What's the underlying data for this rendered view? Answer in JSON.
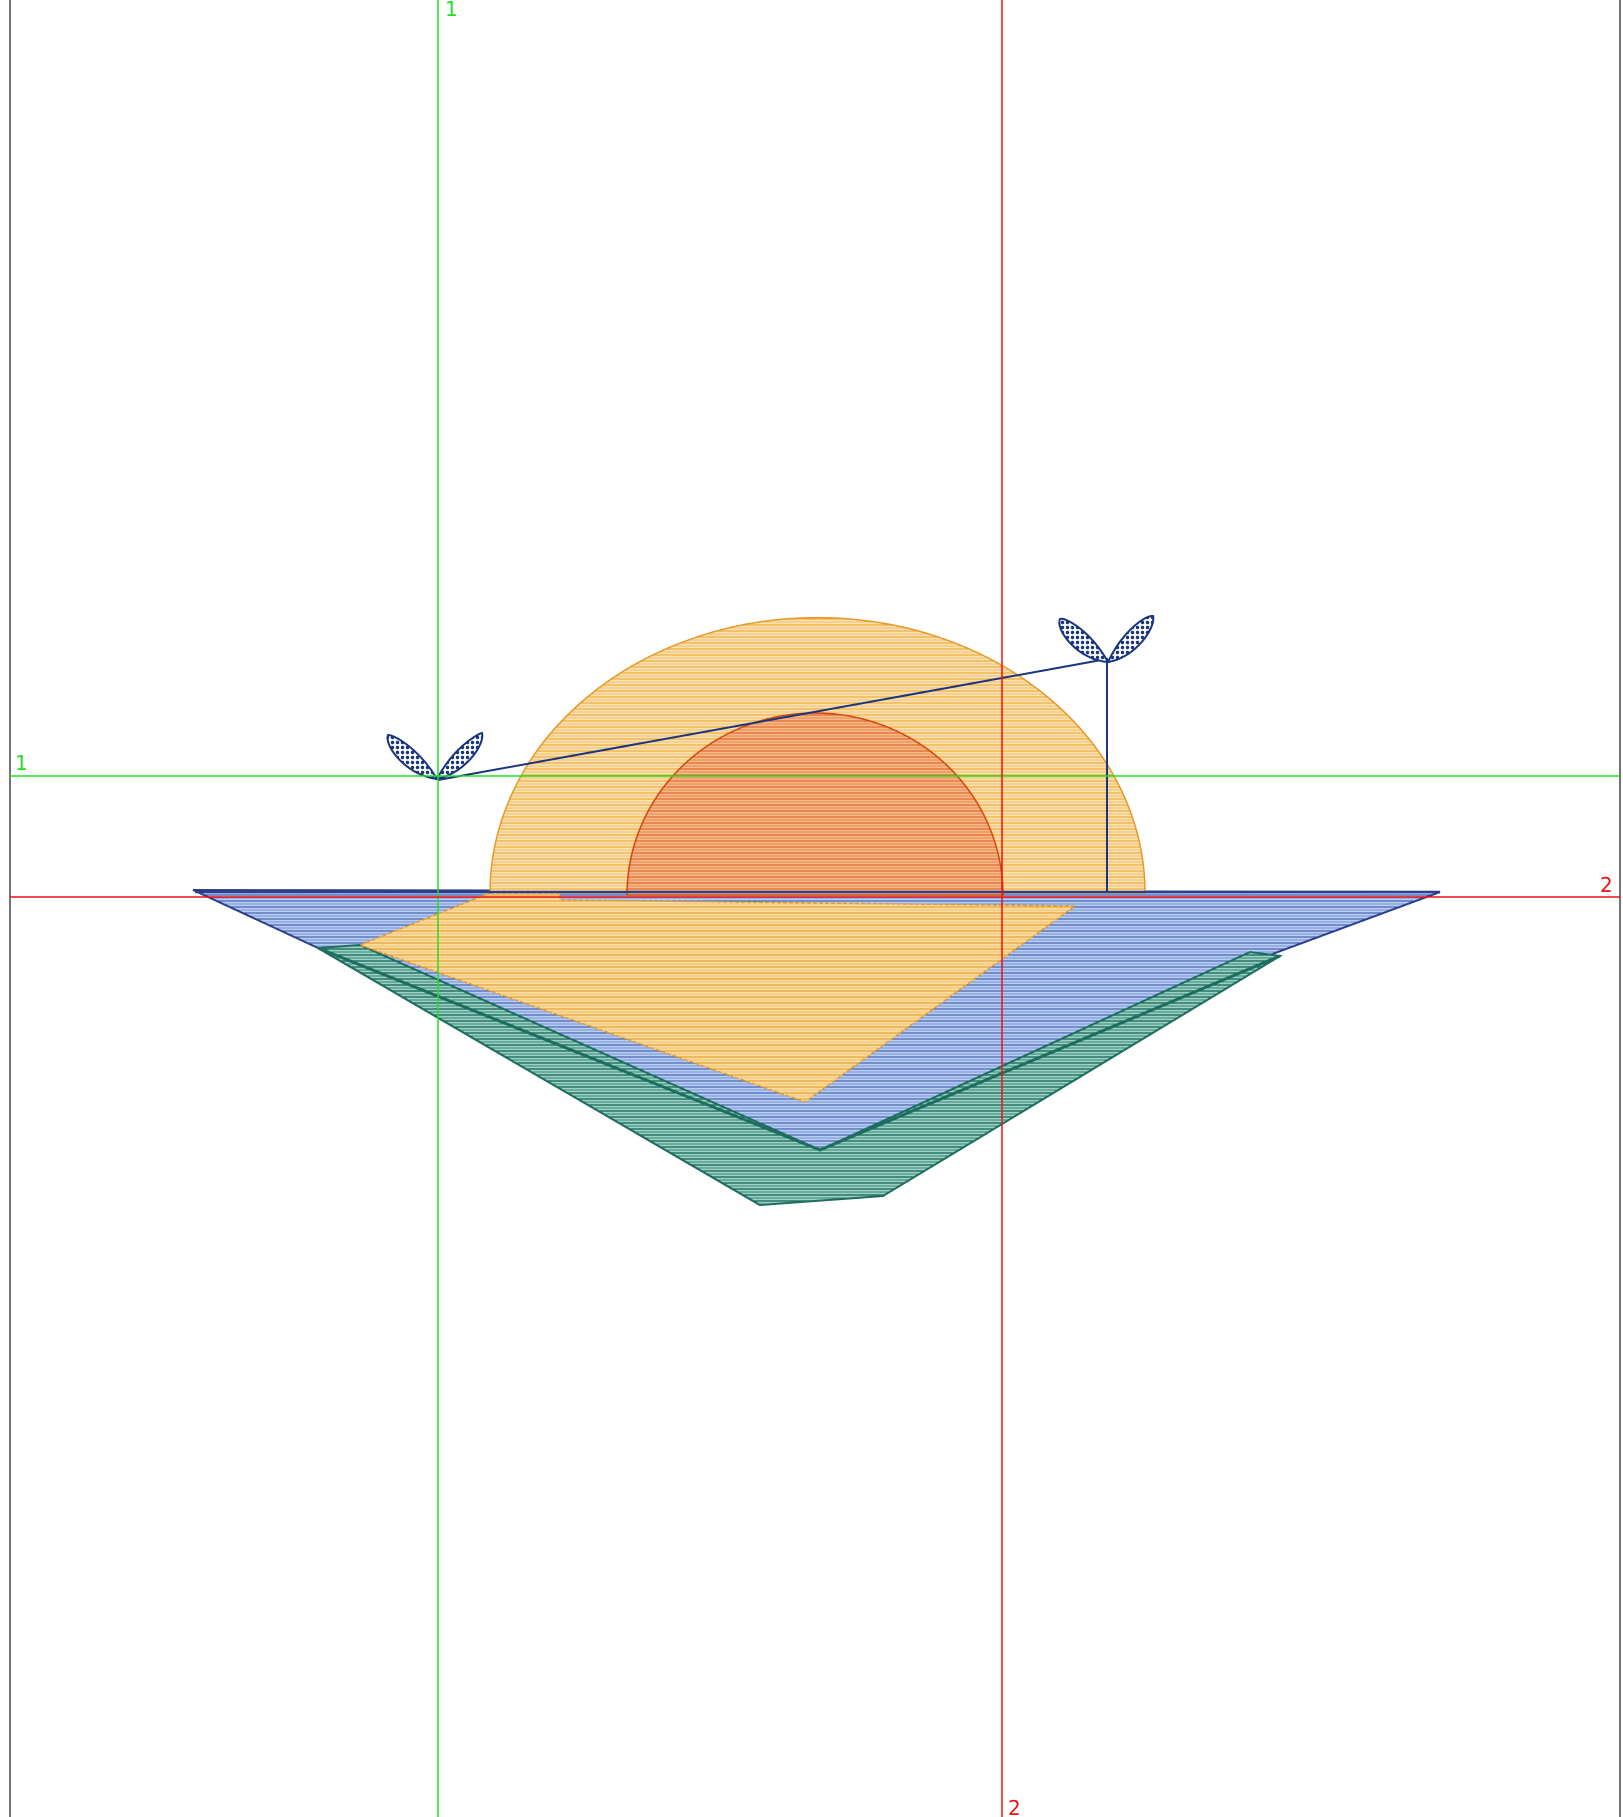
{
  "guides": {
    "label_1": "1",
    "label_2": "2",
    "color_1": "#22dd22",
    "color_2": "#ee1111"
  },
  "design": {
    "colors": {
      "outer_sun": "#f0a530",
      "outer_sun_fill": "#f7c879",
      "inner_sun": "#dd5511",
      "inner_sun_fill": "#f4935a",
      "water": "#3c57a8",
      "water_fill": "#9db5ea",
      "shore": "#1e7a6a",
      "reflection": "#e8a030",
      "reflection_fill": "#f6cf86",
      "bird": "#1a3580",
      "frame": "#444444"
    },
    "fill_style": "horizontal-stitch-lines",
    "elements": [
      "outer-sun-halo",
      "inner-sun",
      "water-band",
      "shore-wedge",
      "sun-reflection",
      "bird-left",
      "bird-right"
    ]
  }
}
